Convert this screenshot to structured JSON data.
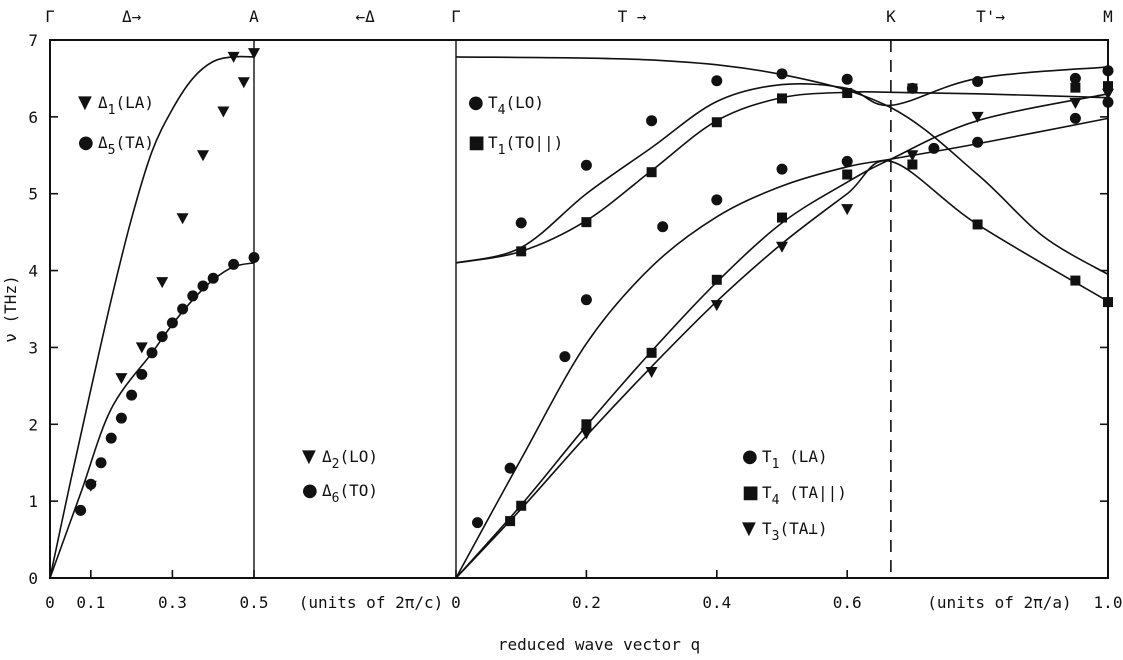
{
  "chart_data": {
    "type": "scatter",
    "ylabel": "ν (THz)",
    "xlabel": "reduced wave vector q",
    "ylim": [
      0,
      7
    ],
    "yticks": [
      "0",
      "1",
      "2",
      "3",
      "4",
      "5",
      "6",
      "7"
    ],
    "panels": [
      {
        "id": "delta",
        "xlim": [
          0,
          0.5
        ],
        "xticks": [
          {
            "v": 0,
            "t": "0"
          },
          {
            "v": 0.1,
            "t": "0.1"
          },
          {
            "v": 0.3,
            "t": "0.3"
          },
          {
            "v": 0.5,
            "t": "0.5"
          }
        ],
        "units": "(units of 2π/c)",
        "series": [
          {
            "name": "Δ1(LA)",
            "marker": "tri",
            "x": [
              0.1,
              0.175,
              0.225,
              0.275,
              0.325,
              0.375,
              0.425,
              0.475
            ],
            "y": [
              1.2,
              2.6,
              3.0,
              3.85,
              4.68,
              5.5,
              6.07,
              6.45
            ]
          },
          {
            "name": "Δ5(TA)",
            "marker": "circle",
            "x": [
              0.075,
              0.1,
              0.125,
              0.15,
              0.175,
              0.2,
              0.225,
              0.25,
              0.275,
              0.3,
              0.325,
              0.35,
              0.375,
              0.4,
              0.45,
              0.5
            ],
            "y": [
              0.88,
              1.22,
              1.5,
              1.82,
              2.08,
              2.38,
              2.65,
              2.93,
              3.14,
              3.32,
              3.5,
              3.67,
              3.8,
              3.9,
              4.08,
              4.17
            ]
          },
          {
            "name": "Δ2(LO)",
            "marker": "tri",
            "x": [
              0.45,
              0.5
            ],
            "y": [
              6.78,
              6.83
            ]
          },
          {
            "name": "Δ6(TO)",
            "marker": "circle",
            "x": [],
            "y": []
          }
        ]
      },
      {
        "id": "T",
        "xlim": [
          0,
          1.0
        ],
        "xticks": [
          {
            "v": 0,
            "t": "0"
          },
          {
            "v": 0.2,
            "t": "0.2"
          },
          {
            "v": 0.4,
            "t": "0.4"
          },
          {
            "v": 0.6,
            "t": "0.6"
          },
          {
            "v": 1.0,
            "t": "1.0"
          }
        ],
        "units": "(units of 2π/a)",
        "series": [
          {
            "name": "T4(LO)",
            "marker": "circle",
            "x": [
              0.1,
              0.2,
              0.3,
              0.4,
              0.5,
              0.6,
              0.7,
              0.8,
              0.95,
              1.0
            ],
            "y": [
              4.62,
              5.37,
              5.95,
              6.47,
              6.56,
              6.49,
              6.37,
              6.46,
              6.5,
              6.6
            ]
          },
          {
            "name": "T1(TO||)",
            "marker": "square",
            "x": [
              0.1,
              0.2,
              0.3,
              0.4,
              0.5,
              0.6,
              0.7,
              0.8,
              0.95,
              1.0
            ],
            "y": [
              4.25,
              4.63,
              5.28,
              5.93,
              6.24,
              6.31,
              6.37,
              4.6,
              3.87,
              3.59
            ]
          },
          {
            "name": "T1(LA)",
            "marker": "circle",
            "x": [
              0.033,
              0.083,
              0.167,
              0.2,
              0.317,
              0.4,
              0.5,
              0.6,
              0.733,
              0.8,
              0.95,
              1.0
            ],
            "y": [
              0.72,
              1.43,
              2.88,
              3.62,
              4.57,
              4.92,
              5.32,
              5.42,
              5.59,
              5.67,
              5.98,
              6.19
            ]
          },
          {
            "name": "T4(TA||)",
            "marker": "square",
            "x": [
              0.083,
              0.1,
              0.2,
              0.3,
              0.4,
              0.5,
              0.6,
              0.7,
              0.95,
              1.0
            ],
            "y": [
              0.74,
              0.94,
              2.0,
              2.93,
              3.88,
              4.69,
              5.25,
              5.38,
              6.38,
              6.4
            ]
          },
          {
            "name": "T3(TA⊥)",
            "marker": "tri",
            "x": [
              0.2,
              0.3,
              0.4,
              0.5,
              0.6,
              0.7,
              0.8,
              0.95,
              1.0
            ],
            "y": [
              1.88,
              2.68,
              3.55,
              4.31,
              4.8,
              5.5,
              6.0,
              6.18,
              6.3
            ]
          }
        ]
      }
    ],
    "legend_left_upper": [
      {
        "sym": "▼",
        "pre": "Δ",
        "sub": "1",
        "post": "(LA)"
      },
      {
        "sym": "●",
        "pre": "Δ",
        "sub": "5",
        "post": "(TA)"
      }
    ],
    "legend_left_lower": [
      {
        "sym": "▼",
        "pre": "Δ",
        "sub": "2",
        "post": "(LO)"
      },
      {
        "sym": "●",
        "pre": "Δ",
        "sub": "6",
        "post": "(TO)"
      }
    ],
    "legend_right_upper": [
      {
        "sym": "●",
        "pre": "T",
        "sub": "4",
        "post": "(LO)"
      },
      {
        "sym": "■",
        "pre": "T",
        "sub": "1",
        "post": "(TO||)"
      }
    ],
    "legend_right_lower": [
      {
        "sym": "●",
        "pre": "T",
        "sub": "1",
        "post": " (LA)"
      },
      {
        "sym": "■",
        "pre": "T",
        "sub": "4",
        "post": " (TA||)"
      },
      {
        "sym": "▼",
        "pre": "T",
        "sub": "3",
        "post": "(TA⊥)"
      }
    ],
    "top_labels": [
      {
        "t": "Γ",
        "at": "delta:0"
      },
      {
        "t": "Δ→",
        "at": "delta:0.2"
      },
      {
        "t": "A",
        "at": "delta:0.5"
      },
      {
        "t": "←Δ",
        "at": "gamma2:-0.2"
      },
      {
        "t": "Γ",
        "at": "T:0"
      },
      {
        "t": "T →",
        "at": "T:0.27"
      },
      {
        "t": "K",
        "at": "T:0.667"
      },
      {
        "t": "T'→",
        "at": "T:0.82"
      },
      {
        "t": "M",
        "at": "T:1.0"
      }
    ],
    "K_position": 0.667
  }
}
